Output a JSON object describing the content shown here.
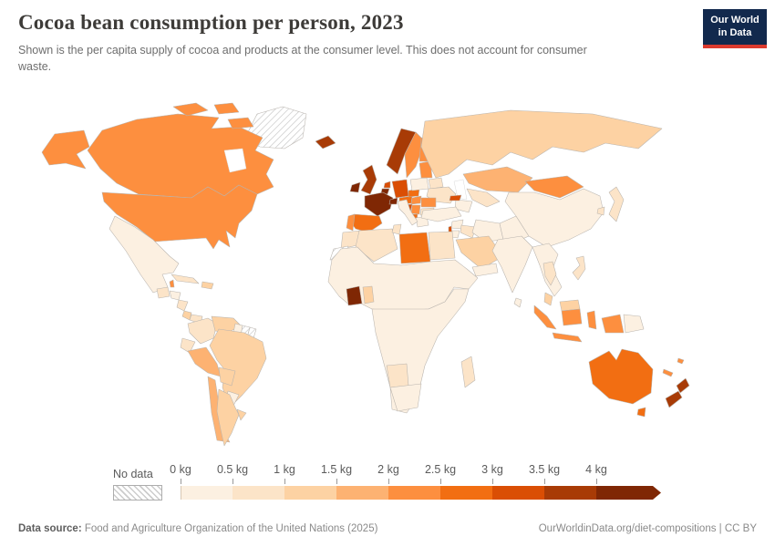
{
  "header": {
    "title": "Cocoa bean consumption per person, 2023",
    "subtitle": "Shown is the per capita supply of cocoa and products at the consumer level. This does not account for consumer waste."
  },
  "logo": {
    "line1": "Our World",
    "line2": "in Data",
    "bg_color": "#12294d",
    "accent_color": "#dc3a2e"
  },
  "legend": {
    "no_data_label": "No data",
    "tick_labels": [
      "0 kg",
      "0.5 kg",
      "1 kg",
      "1.5 kg",
      "2 kg",
      "2.5 kg",
      "3 kg",
      "3.5 kg",
      "4 kg"
    ]
  },
  "footer": {
    "source_label": "Data source:",
    "source_text": " Food and Agriculture Organization of the United Nations (2025)",
    "right_text": "OurWorldinData.org/diet-compositions | CC BY"
  },
  "chart_data": {
    "type": "choropleth_map",
    "title": "Cocoa bean consumption per person, 2023",
    "unit": "kg per capita per year",
    "year": 2023,
    "projection": "world",
    "legend_position": "bottom",
    "bin_edges_kg": [
      0,
      0.5,
      1,
      1.5,
      2,
      2.5,
      3,
      3.5,
      4,
      "4+"
    ],
    "palette": [
      "#fcf0e1",
      "#fce4c8",
      "#fdd2a3",
      "#fdb272",
      "#fd8f3f",
      "#f26e12",
      "#da4e04",
      "#a83b06",
      "#7f2704"
    ],
    "no_data_pattern": "diagonal-hatch",
    "countries": [
      {
        "name": "Canada",
        "region": "canada",
        "bin": 4
      },
      {
        "name": "United States",
        "region": "united-states",
        "bin": 4
      },
      {
        "name": "Greenland",
        "region": "greenland",
        "bin": "no-data"
      },
      {
        "name": "Mexico",
        "region": "mexico",
        "bin": 0
      },
      {
        "name": "Guatemala",
        "region": "guatemala",
        "bin": 1
      },
      {
        "name": "Belize",
        "region": "belize",
        "bin": 4
      },
      {
        "name": "Honduras",
        "region": "honduras",
        "bin": 0
      },
      {
        "name": "Nicaragua",
        "region": "nicaragua",
        "bin": 1
      },
      {
        "name": "Costa Rica",
        "region": "costa-rica",
        "bin": 2
      },
      {
        "name": "Panama",
        "region": "panama",
        "bin": 1
      },
      {
        "name": "Cuba",
        "region": "cuba",
        "bin": 1
      },
      {
        "name": "Dominican Republic / Haiti",
        "region": "hispaniola",
        "bin": 2
      },
      {
        "name": "Colombia",
        "region": "colombia",
        "bin": 1
      },
      {
        "name": "Venezuela",
        "region": "venezuela",
        "bin": 2
      },
      {
        "name": "Guyana",
        "region": "guyana",
        "bin": 0
      },
      {
        "name": "Suriname",
        "region": "suriname",
        "bin": "no-data"
      },
      {
        "name": "French Guiana",
        "region": "french-guiana",
        "bin": "no-data"
      },
      {
        "name": "Ecuador",
        "region": "ecuador",
        "bin": 1
      },
      {
        "name": "Peru",
        "region": "peru",
        "bin": 3
      },
      {
        "name": "Brazil",
        "region": "brazil",
        "bin": 2
      },
      {
        "name": "Bolivia",
        "region": "bolivia",
        "bin": 2
      },
      {
        "name": "Paraguay",
        "region": "paraguay",
        "bin": 0
      },
      {
        "name": "Chile",
        "region": "chile",
        "bin": 3
      },
      {
        "name": "Argentina",
        "region": "argentina",
        "bin": 2
      },
      {
        "name": "Uruguay",
        "region": "uruguay",
        "bin": 2
      },
      {
        "name": "Iceland",
        "region": "iceland",
        "bin": 7
      },
      {
        "name": "Ireland",
        "region": "ireland",
        "bin": 8
      },
      {
        "name": "United Kingdom",
        "region": "united-kingdom",
        "bin": 7
      },
      {
        "name": "Norway",
        "region": "norway",
        "bin": 7
      },
      {
        "name": "Sweden",
        "region": "sweden",
        "bin": 4
      },
      {
        "name": "Finland",
        "region": "finland",
        "bin": 4
      },
      {
        "name": "Denmark",
        "region": "denmark",
        "bin": 6
      },
      {
        "name": "Netherlands",
        "region": "netherlands",
        "bin": 6
      },
      {
        "name": "Belgium",
        "region": "belgium",
        "bin": 8
      },
      {
        "name": "Germany",
        "region": "germany",
        "bin": 6
      },
      {
        "name": "France",
        "region": "france",
        "bin": 8
      },
      {
        "name": "Switzerland",
        "region": "switzerland",
        "bin": 8
      },
      {
        "name": "Austria",
        "region": "austria",
        "bin": 5
      },
      {
        "name": "Czechia",
        "region": "czechia",
        "bin": 5
      },
      {
        "name": "Poland",
        "region": "poland",
        "bin": 0
      },
      {
        "name": "Baltic states",
        "region": "baltics",
        "bin": 4
      },
      {
        "name": "Belarus",
        "region": "belarus",
        "bin": 1
      },
      {
        "name": "Ukraine",
        "region": "ukraine",
        "bin": 1
      },
      {
        "name": "Hungary",
        "region": "hungary",
        "bin": 4
      },
      {
        "name": "Romania",
        "region": "romania",
        "bin": 4
      },
      {
        "name": "Croatia / Slovenia",
        "region": "croatia",
        "bin": 6
      },
      {
        "name": "Serbia",
        "region": "serbia",
        "bin": 4
      },
      {
        "name": "Bulgaria",
        "region": "bulgaria",
        "bin": 1
      },
      {
        "name": "Albania",
        "region": "albania",
        "bin": 5
      },
      {
        "name": "Greece",
        "region": "greece",
        "bin": 0
      },
      {
        "name": "Italy",
        "region": "italy",
        "bin": 0
      },
      {
        "name": "Spain",
        "region": "spain",
        "bin": 5
      },
      {
        "name": "Portugal",
        "region": "portugal",
        "bin": 4
      },
      {
        "name": "Russia",
        "region": "russia",
        "bin": 2
      },
      {
        "name": "Kazakhstan",
        "region": "kazakhstan",
        "bin": 3
      },
      {
        "name": "Central Asia (various)",
        "region": "central-asia",
        "bin": 1
      },
      {
        "name": "Turkmenistan",
        "region": "turkmenistan",
        "bin": 0
      },
      {
        "name": "Mongolia",
        "region": "mongolia",
        "bin": 4
      },
      {
        "name": "Georgia",
        "region": "georgia",
        "bin": 6
      },
      {
        "name": "Turkey",
        "region": "turkey",
        "bin": 0
      },
      {
        "name": "Syria",
        "region": "syria",
        "bin": 0
      },
      {
        "name": "Iraq",
        "region": "iraq",
        "bin": 1
      },
      {
        "name": "Iran",
        "region": "iran",
        "bin": 0
      },
      {
        "name": "Israel",
        "region": "israel",
        "bin": 6
      },
      {
        "name": "Jordan",
        "region": "jordan",
        "bin": 0
      },
      {
        "name": "Saudi Arabia",
        "region": "saudi-arabia",
        "bin": 2
      },
      {
        "name": "Yemen",
        "region": "yemen",
        "bin": 0
      },
      {
        "name": "Oman",
        "region": "oman",
        "bin": 4
      },
      {
        "name": "United Arab Emirates",
        "region": "uae",
        "bin": 3
      },
      {
        "name": "Morocco",
        "region": "morocco",
        "bin": 1
      },
      {
        "name": "Western Sahara",
        "region": "western-sahara",
        "bin": "no-data"
      },
      {
        "name": "Algeria",
        "region": "algeria",
        "bin": 1
      },
      {
        "name": "Tunisia",
        "region": "tunisia",
        "bin": 1
      },
      {
        "name": "Libya",
        "region": "libya",
        "bin": 5
      },
      {
        "name": "Egypt",
        "region": "egypt",
        "bin": 1
      },
      {
        "name": "Sahel & West Africa (various)",
        "region": "north-central-africa",
        "bin": 0
      },
      {
        "name": "Cote d'Ivoire",
        "region": "cote-divoire",
        "bin": 8
      },
      {
        "name": "Ghana",
        "region": "ghana",
        "bin": 2
      },
      {
        "name": "Central & East Africa (various)",
        "region": "sub-saharan-africa",
        "bin": 0
      },
      {
        "name": "Namibia",
        "region": "namibia",
        "bin": 1
      },
      {
        "name": "South Africa",
        "region": "south-africa",
        "bin": 0
      },
      {
        "name": "Madagascar",
        "region": "madagascar",
        "bin": 1
      },
      {
        "name": "China",
        "region": "china",
        "bin": 0
      },
      {
        "name": "Japan",
        "region": "japan",
        "bin": 1
      },
      {
        "name": "South Korea",
        "region": "south-korea",
        "bin": 1
      },
      {
        "name": "India",
        "region": "india",
        "bin": 0
      },
      {
        "name": "Pakistan / Afghanistan",
        "region": "south-central-asia",
        "bin": 0
      },
      {
        "name": "Mainland Southeast Asia",
        "region": "mainland-southeast-asia",
        "bin": 0
      },
      {
        "name": "Thailand",
        "region": "thailand",
        "bin": 1
      },
      {
        "name": "Malaysia (peninsula)",
        "region": "malaysia-peninsula",
        "bin": 2
      },
      {
        "name": "Sri Lanka",
        "region": "sri-lanka",
        "bin": 0
      },
      {
        "name": "Philippines",
        "region": "philippines",
        "bin": 1
      },
      {
        "name": "Indonesia (Sumatra)",
        "region": "sumatra",
        "bin": 4
      },
      {
        "name": "Malaysia (Borneo)",
        "region": "borneo-malaysia",
        "bin": 2
      },
      {
        "name": "Indonesia (Kalimantan)",
        "region": "borneo-indonesia",
        "bin": 4
      },
      {
        "name": "Indonesia (Java)",
        "region": "java",
        "bin": 4
      },
      {
        "name": "Indonesia (Sulawesi)",
        "region": "sulawesi",
        "bin": 4
      },
      {
        "name": "Indonesia (Papua)",
        "region": "west-papua",
        "bin": 4
      },
      {
        "name": "Papua New Guinea",
        "region": "papua-new-guinea",
        "bin": 0
      },
      {
        "name": "Fiji",
        "region": "fiji",
        "bin": 4
      },
      {
        "name": "New Caledonia",
        "region": "new-caledonia",
        "bin": 4
      },
      {
        "name": "Australia",
        "region": "australia",
        "bin": 5
      },
      {
        "name": "Tasmania",
        "region": "tasmania",
        "bin": 5
      },
      {
        "name": "New Zealand",
        "region": "new-zealand",
        "bin": 7
      }
    ]
  }
}
